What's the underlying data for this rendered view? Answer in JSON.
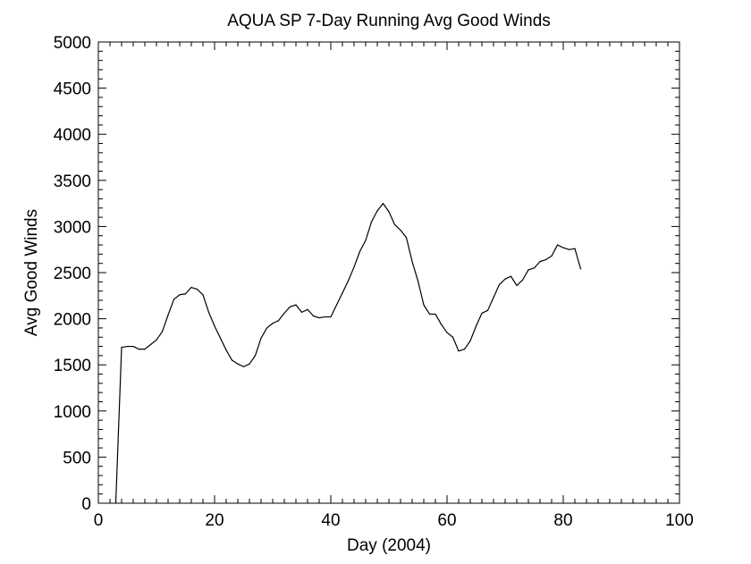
{
  "chart_data": {
    "type": "line",
    "title": "AQUA SP 7-Day Running Avg Good Winds",
    "xlabel": "Day (2004)",
    "ylabel": "Avg Good Winds",
    "xlim": [
      0,
      100
    ],
    "ylim": [
      0,
      5000
    ],
    "x_ticks": [
      0,
      20,
      40,
      60,
      80,
      100
    ],
    "y_ticks": [
      0,
      500,
      1000,
      1500,
      2000,
      2500,
      3000,
      3500,
      4000,
      4500,
      5000
    ],
    "x_tick_labels": [
      "0",
      "20",
      "40",
      "60",
      "80",
      "100"
    ],
    "y_tick_labels": [
      "0",
      "500",
      "1000",
      "1500",
      "2000",
      "2500",
      "3000",
      "3500",
      "4000",
      "4500",
      "5000"
    ],
    "grid": false,
    "line_color": "#000000",
    "series": [
      {
        "x": [
          3,
          4,
          5,
          6,
          7,
          8,
          9,
          10,
          11,
          12,
          13,
          14,
          15,
          16,
          17,
          18,
          19,
          20,
          21,
          22,
          23,
          24,
          25,
          26,
          27,
          28,
          29,
          30,
          31,
          32,
          33,
          34,
          35,
          36,
          37,
          38,
          39,
          40,
          41,
          42,
          43,
          44,
          45,
          46,
          47,
          48,
          49,
          50,
          51,
          52,
          53,
          54,
          55,
          56,
          57,
          58,
          59,
          60,
          61,
          62,
          63,
          64,
          65,
          66,
          67,
          68,
          69,
          70,
          71,
          72,
          73,
          74,
          75,
          76,
          77,
          78,
          79,
          80,
          81,
          82,
          83
        ],
        "y": [
          0,
          1690,
          1700,
          1700,
          1670,
          1670,
          1720,
          1770,
          1860,
          2040,
          2210,
          2260,
          2270,
          2340,
          2320,
          2260,
          2070,
          1920,
          1790,
          1660,
          1550,
          1510,
          1480,
          1510,
          1600,
          1790,
          1900,
          1950,
          1980,
          2060,
          2130,
          2150,
          2070,
          2100,
          2030,
          2010,
          2020,
          2020,
          2150,
          2280,
          2410,
          2560,
          2730,
          2850,
          3050,
          3170,
          3250,
          3160,
          3020,
          2960,
          2880,
          2620,
          2410,
          2150,
          2050,
          2050,
          1940,
          1850,
          1800,
          1650,
          1670,
          1760,
          1920,
          2060,
          2090,
          2230,
          2370,
          2430,
          2460,
          2360,
          2420,
          2530,
          2550,
          2620,
          2640,
          2680,
          2800,
          2770,
          2750,
          2760,
          2540
        ]
      }
    ]
  }
}
